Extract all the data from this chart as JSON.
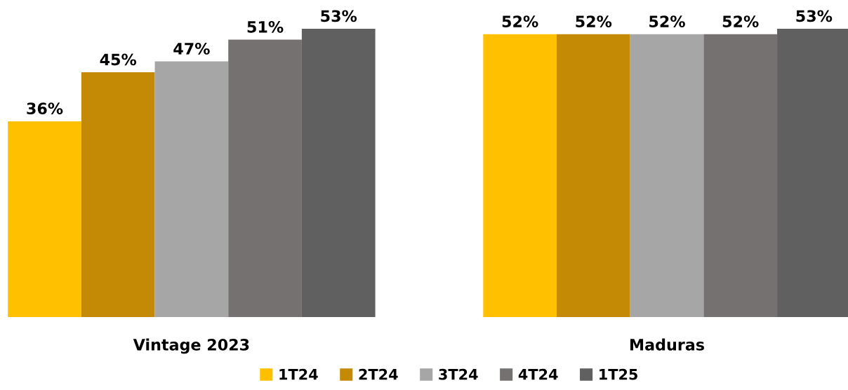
{
  "chart_data": {
    "type": "bar",
    "categories": [
      "Vintage 2023",
      "Maduras"
    ],
    "tick_labels": "x",
    "legend": "bottom",
    "series": [
      {
        "name": "1T24",
        "color": "#ffc000",
        "values": [
          36,
          52
        ],
        "value_labels": [
          "36%",
          "52%"
        ]
      },
      {
        "name": "2T24",
        "color": "#c48a06",
        "values": [
          45,
          52
        ],
        "value_labels": [
          "45%",
          "52%"
        ]
      },
      {
        "name": "3T24",
        "color": "#a6a6a6",
        "values": [
          47,
          52
        ],
        "value_labels": [
          "47%",
          "52%"
        ]
      },
      {
        "name": "4T24",
        "color": "#767171",
        "values": [
          51,
          52
        ],
        "value_labels": [
          "51%",
          "52%"
        ]
      },
      {
        "name": "1T25",
        "color": "#606060",
        "values": [
          53,
          53
        ],
        "value_labels": [
          "53%",
          "53%"
        ]
      }
    ]
  }
}
